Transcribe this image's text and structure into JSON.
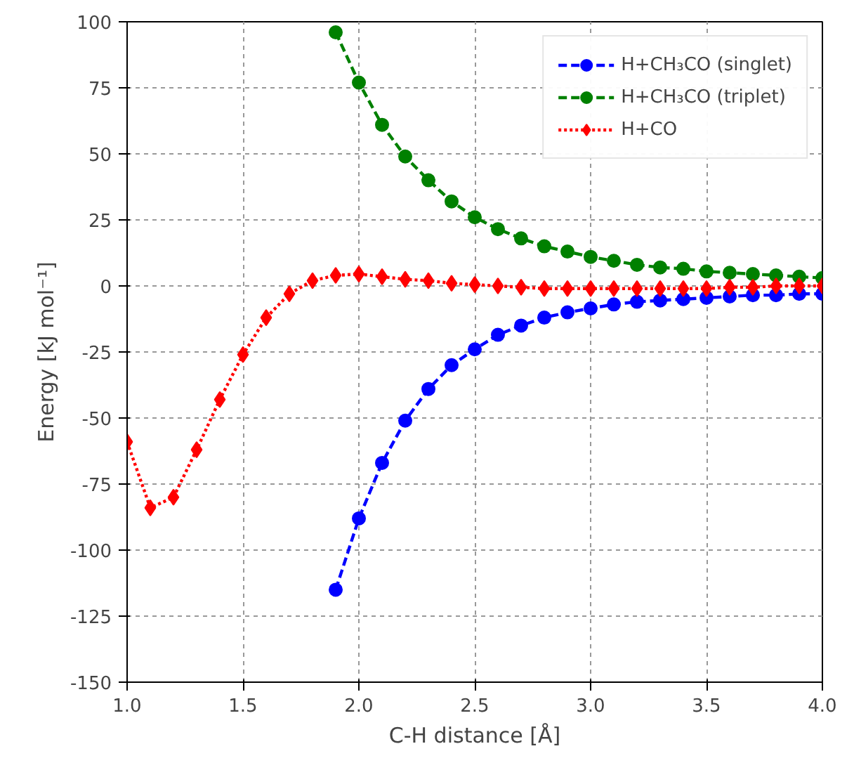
{
  "chart_data": {
    "type": "line",
    "xlabel": "C-H distance [Å]",
    "ylabel": "Energy [kJ mol⁻¹]",
    "xlim": [
      1.0,
      4.0
    ],
    "ylim": [
      -150,
      100
    ],
    "xticks": [
      {
        "value": 1.0,
        "label": "1.0"
      },
      {
        "value": 1.5,
        "label": "1.5"
      },
      {
        "value": 2.0,
        "label": "2.0"
      },
      {
        "value": 2.5,
        "label": "2.5"
      },
      {
        "value": 3.0,
        "label": "3.0"
      },
      {
        "value": 3.5,
        "label": "3.5"
      },
      {
        "value": 4.0,
        "label": "4.0"
      }
    ],
    "yticks": [
      -150,
      -125,
      -100,
      -75,
      -50,
      -25,
      0,
      25,
      50,
      75,
      100
    ],
    "grid": true,
    "legend": "top right",
    "series": [
      {
        "name": "H+CH₃CO (singlet)",
        "color": "#0000ff",
        "marker": "circle",
        "line_style": "dashed",
        "x": [
          1.9,
          2.0,
          2.1,
          2.2,
          2.3,
          2.4,
          2.5,
          2.6,
          2.7,
          2.8,
          2.9,
          3.0,
          3.1,
          3.2,
          3.3,
          3.4,
          3.5,
          3.6,
          3.7,
          3.8,
          3.9,
          4.0
        ],
        "values": [
          -115,
          -88,
          -67,
          -51,
          -39,
          -30,
          -24,
          -18.5,
          -15,
          -12,
          -10,
          -8.5,
          -7,
          -6,
          -5.5,
          -5,
          -4.5,
          -4,
          -3.5,
          -3.5,
          -3,
          -3
        ]
      },
      {
        "name": "H+CH₃CO (triplet)",
        "color": "#008000",
        "marker": "circle",
        "line_style": "dashed",
        "x": [
          1.9,
          2.0,
          2.1,
          2.2,
          2.3,
          2.4,
          2.5,
          2.6,
          2.7,
          2.8,
          2.9,
          3.0,
          3.1,
          3.2,
          3.3,
          3.4,
          3.5,
          3.6,
          3.7,
          3.8,
          3.9,
          4.0
        ],
        "values": [
          96,
          77,
          61,
          49,
          40,
          32,
          26,
          21.5,
          18,
          15,
          13,
          11,
          9.5,
          8,
          7,
          6.5,
          5.5,
          5,
          4.5,
          4,
          3.5,
          3
        ]
      },
      {
        "name": "H+CO",
        "color": "#ff0000",
        "marker": "diamond",
        "line_style": "dotted",
        "x": [
          1.0,
          1.1,
          1.2,
          1.3,
          1.4,
          1.5,
          1.6,
          1.7,
          1.8,
          1.9,
          2.0,
          2.1,
          2.2,
          2.3,
          2.4,
          2.5,
          2.6,
          2.7,
          2.8,
          2.9,
          3.0,
          3.1,
          3.2,
          3.3,
          3.4,
          3.5,
          3.6,
          3.7,
          3.8,
          3.9,
          4.0
        ],
        "values": [
          -59,
          -84,
          -80,
          -62,
          -43,
          -26,
          -12,
          -3,
          2,
          4,
          4.5,
          3.5,
          2.5,
          2,
          1,
          0.5,
          0,
          -0.5,
          -1,
          -1,
          -1,
          -1,
          -1,
          -1,
          -1,
          -1,
          -0.5,
          -0.5,
          0,
          0,
          0
        ]
      }
    ]
  }
}
